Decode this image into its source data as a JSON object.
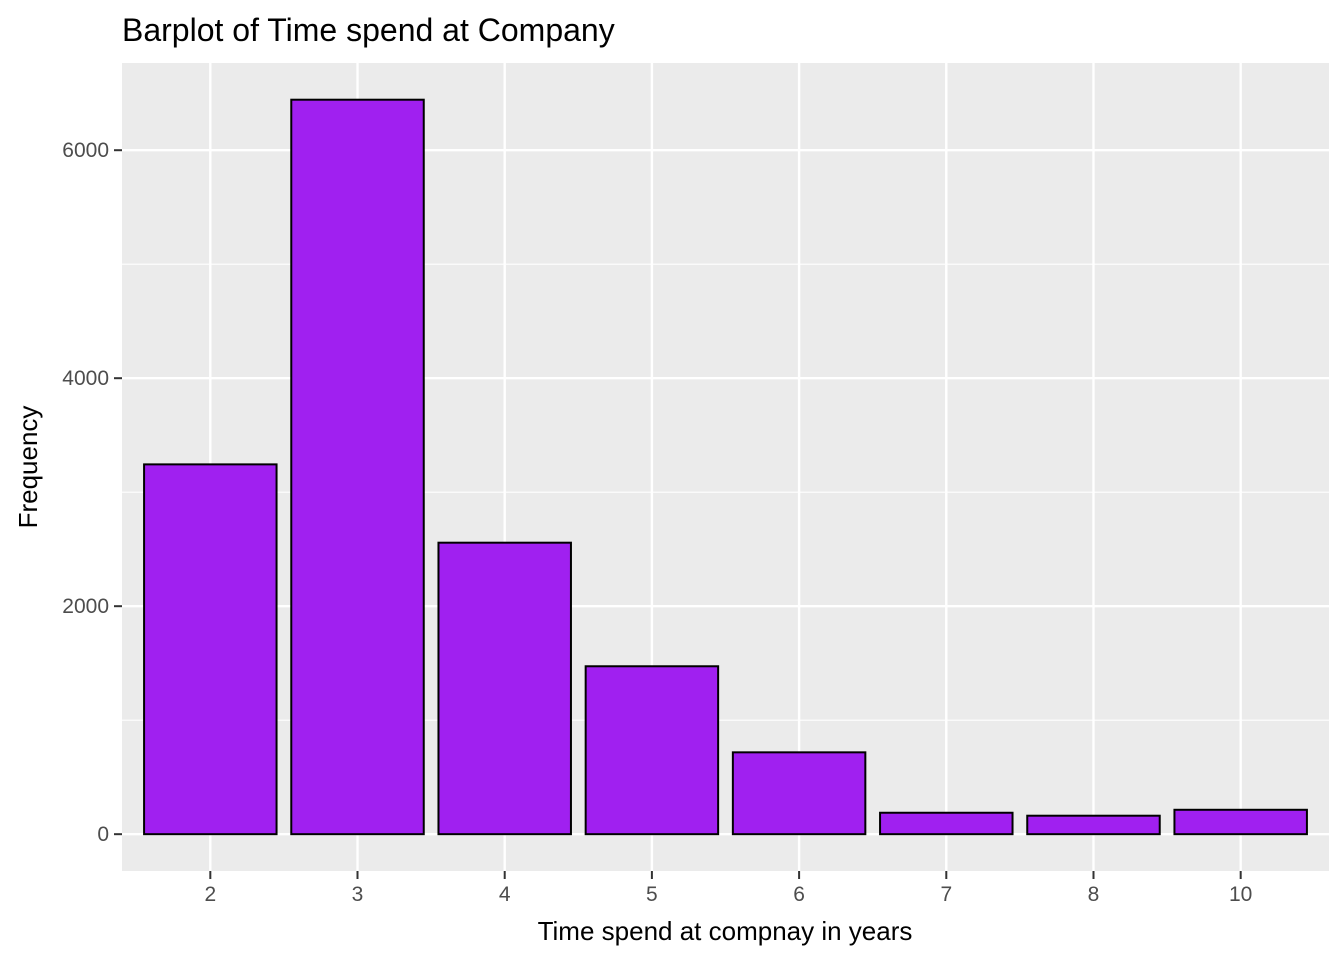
{
  "chart_data": {
    "type": "bar",
    "title": "Barplot of Time spend at Company",
    "xlabel": "Time spend at compnay in years",
    "ylabel": "Frequency",
    "categories": [
      "2",
      "3",
      "4",
      "5",
      "6",
      "7",
      "8",
      "10"
    ],
    "values": [
      3244,
      6443,
      2557,
      1473,
      718,
      188,
      162,
      214
    ],
    "ylim": [
      -323,
      6765
    ],
    "yticks": [
      0,
      2000,
      4000,
      6000
    ],
    "yticks_minor": [
      1000,
      3000,
      5000
    ],
    "grid": true,
    "legend": "none",
    "colors": {
      "panel_background": "#ebebeb",
      "grid": "#ffffff",
      "bar_fill": "#a020f0",
      "bar_outline": "#000000",
      "tick_mark": "#333333",
      "tick_label": "#4d4d4d"
    }
  }
}
